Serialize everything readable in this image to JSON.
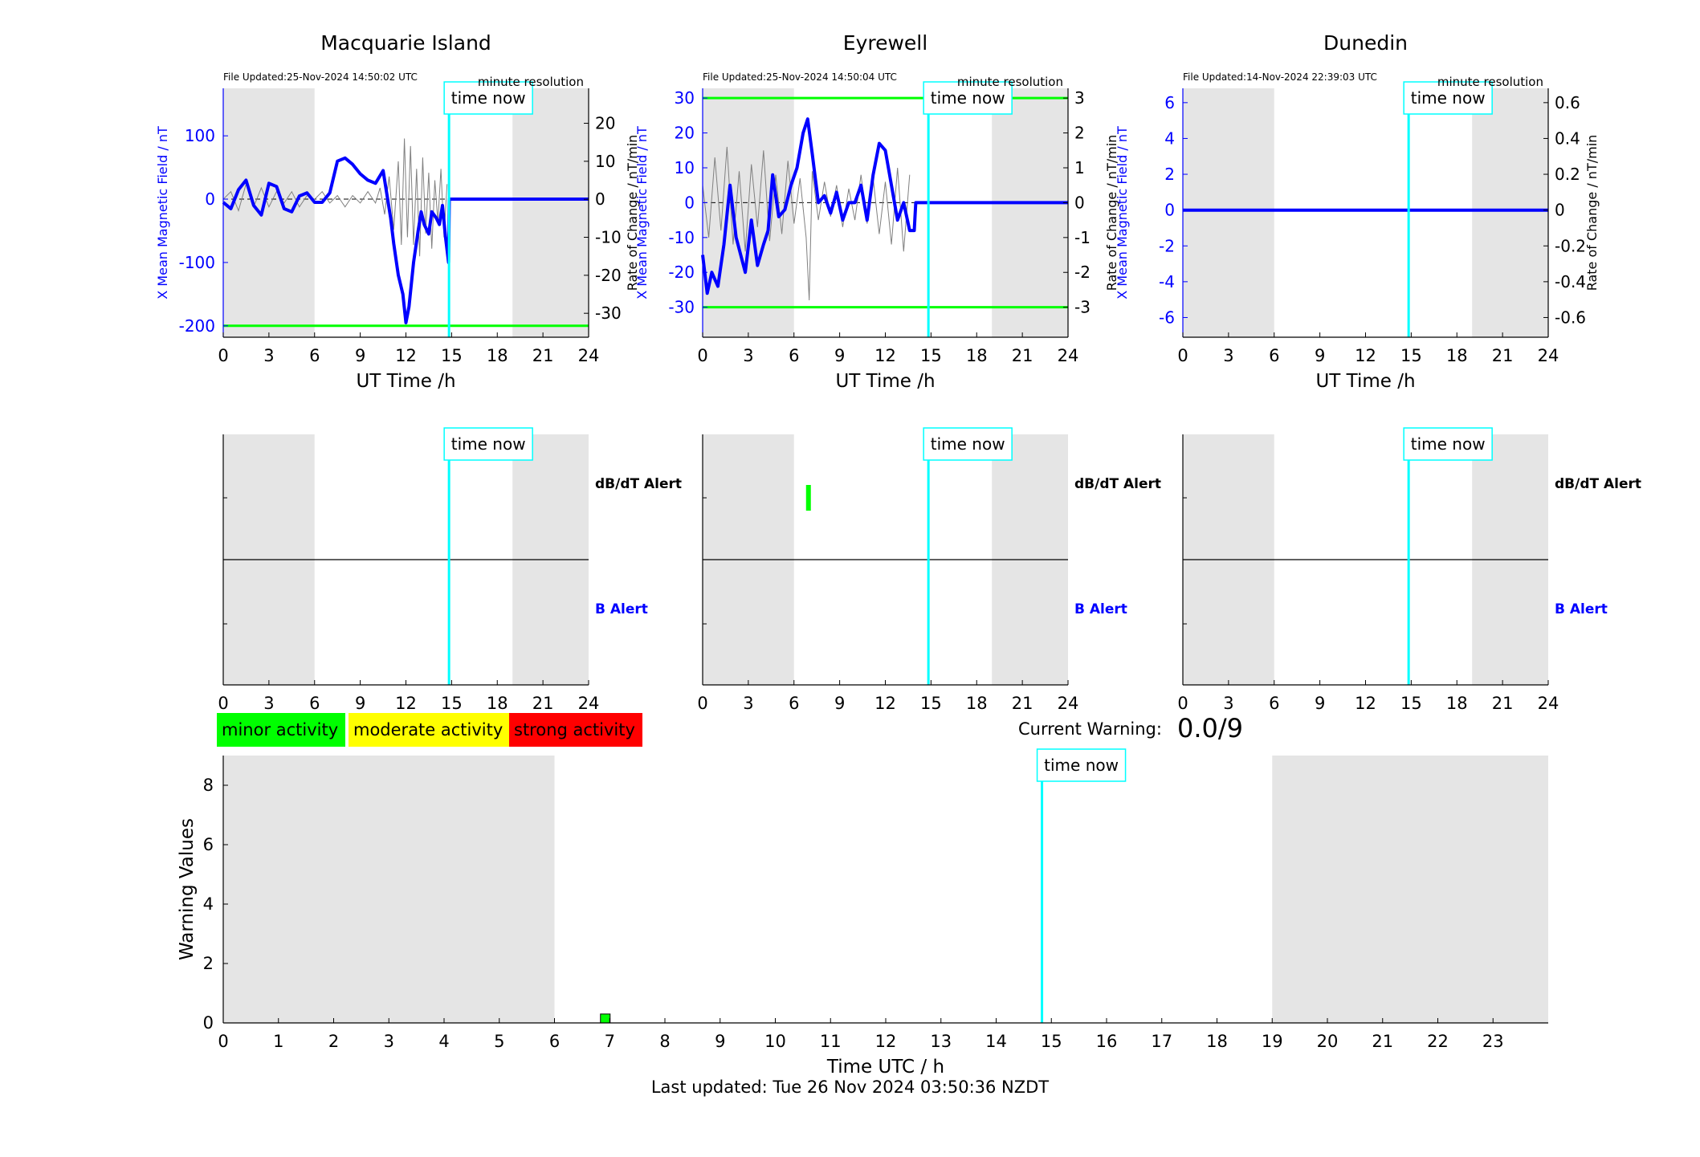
{
  "chart_data": [
    {
      "type": "line",
      "title": "Macquarie Island",
      "file_updated": "File Updated:25-Nov-2024 14:50:02 UTC",
      "resolution_note": "minute resolution",
      "xlabel": "UT Time /h",
      "ylabel_left": "X Mean Magnetic Field / nT",
      "ylabel_right": "Rate of Change / nT/min",
      "xlim": [
        0,
        24
      ],
      "xticks": [
        "0",
        "3",
        "6",
        "9",
        "12",
        "15",
        "18",
        "21",
        "24"
      ],
      "ylim_left": [
        -218,
        175
      ],
      "yticks_left": [
        "100",
        "0",
        "-100",
        "-200"
      ],
      "yticks_left_values": [
        100,
        0,
        -100,
        -200
      ],
      "ylim_right": [
        -36.3,
        29.2
      ],
      "yticks_right": [
        "20",
        "10",
        "0",
        "-10",
        "-20",
        "-30"
      ],
      "yticks_right_values": [
        20,
        10,
        0,
        -10,
        -20,
        -30
      ],
      "threshold_lines_left": [
        -200
      ],
      "shaded_hours": [
        [
          0,
          6
        ],
        [
          19,
          24
        ]
      ],
      "time_now_hour": 14.83,
      "time_now_label": "time now",
      "series": [
        {
          "role": "field",
          "x": [
            0,
            0.5,
            1,
            1.5,
            2,
            2.5,
            3,
            3.5,
            4,
            4.5,
            5,
            5.5,
            6,
            6.5,
            7,
            7.5,
            8,
            8.5,
            9,
            9.5,
            10,
            10.5,
            11,
            11.2,
            11.5,
            11.8,
            12,
            12.2,
            12.5,
            12.8,
            13,
            13.2,
            13.5,
            13.7,
            14,
            14.2,
            14.4,
            14.6,
            14.8,
            14.85,
            15,
            24
          ],
          "y": [
            -5,
            -15,
            15,
            30,
            -10,
            -25,
            25,
            20,
            -15,
            -20,
            5,
            10,
            -5,
            -5,
            10,
            60,
            65,
            55,
            40,
            30,
            25,
            45,
            -30,
            -70,
            -120,
            -150,
            -195,
            -170,
            -100,
            -50,
            -20,
            -40,
            -55,
            -20,
            -30,
            -40,
            -10,
            -60,
            -100,
            0,
            0,
            0
          ]
        },
        {
          "role": "rate_of_change",
          "x": [
            0,
            0.5,
            1,
            1.5,
            2,
            2.5,
            3,
            3.5,
            4,
            4.5,
            5,
            5.5,
            6,
            6.5,
            7,
            7.5,
            8,
            8.5,
            9,
            9.5,
            10,
            10.3,
            10.6,
            10.9,
            11.2,
            11.5,
            11.7,
            11.9,
            12.1,
            12.3,
            12.5,
            12.7,
            12.9,
            13.1,
            13.3,
            13.5,
            13.7,
            13.9,
            14.1,
            14.3,
            14.5,
            14.7
          ],
          "y": [
            0,
            2,
            -3,
            4,
            -2,
            3,
            -2,
            2,
            -1,
            2,
            -2,
            1,
            0,
            2,
            -1,
            1,
            -2,
            1,
            -1,
            2,
            -1,
            3,
            -4,
            6,
            -8,
            10,
            -12,
            16,
            -10,
            14,
            -12,
            8,
            -15,
            11,
            -9,
            7,
            -13,
            5,
            -6,
            8,
            -10,
            4
          ]
        }
      ]
    },
    {
      "type": "line",
      "title": "Eyrewell",
      "file_updated": "File Updated:25-Nov-2024 14:50:04 UTC",
      "resolution_note": "minute resolution",
      "xlabel": "UT Time /h",
      "ylabel_left": "X Mean Magnetic Field / nT",
      "ylabel_right": "Rate of Change / nT/min",
      "xlim": [
        0,
        24
      ],
      "xticks": [
        "0",
        "3",
        "6",
        "9",
        "12",
        "15",
        "18",
        "21",
        "24"
      ],
      "ylim_left": [
        -38.6,
        32.8
      ],
      "yticks_left": [
        "30",
        "20",
        "10",
        "0",
        "-10",
        "-20",
        "-30"
      ],
      "yticks_left_values": [
        30,
        20,
        10,
        0,
        -10,
        -20,
        -30
      ],
      "ylim_right": [
        -3.86,
        3.28
      ],
      "yticks_right": [
        "3",
        "2",
        "1",
        "0",
        "-1",
        "-2",
        "-3"
      ],
      "yticks_right_values": [
        3,
        2,
        1,
        0,
        -1,
        -2,
        -3
      ],
      "threshold_lines_left": [
        30,
        -30
      ],
      "shaded_hours": [
        [
          0,
          6
        ],
        [
          19,
          24
        ]
      ],
      "time_now_hour": 14.83,
      "time_now_label": "time now",
      "series": [
        {
          "role": "field",
          "x": [
            0,
            0.3,
            0.6,
            1,
            1.4,
            1.8,
            2.2,
            2.5,
            2.8,
            3.2,
            3.6,
            4,
            4.3,
            4.6,
            5,
            5.4,
            5.8,
            6.2,
            6.6,
            6.9,
            7.2,
            7.6,
            8,
            8.4,
            8.8,
            9.2,
            9.6,
            10,
            10.4,
            10.8,
            11.2,
            11.6,
            12,
            12.4,
            12.8,
            13.2,
            13.6,
            13.9,
            14,
            14.83,
            24
          ],
          "y": [
            -15,
            -26,
            -20,
            -24,
            -12,
            5,
            -10,
            -15,
            -20,
            -5,
            -18,
            -12,
            -8,
            8,
            -4,
            -2,
            5,
            10,
            20,
            24,
            14,
            0,
            2,
            -3,
            3,
            -5,
            0,
            0,
            5,
            -5,
            8,
            17,
            15,
            5,
            -5,
            0,
            -8,
            -8,
            0,
            0,
            0
          ]
        },
        {
          "role": "rate_of_change",
          "x": [
            0,
            0.4,
            0.8,
            1.2,
            1.6,
            2,
            2.4,
            2.8,
            3.2,
            3.6,
            4,
            4.4,
            4.8,
            5.2,
            5.6,
            6,
            6.4,
            6.8,
            7,
            7.2,
            7.6,
            8,
            8.4,
            8.8,
            9.2,
            9.6,
            10,
            10.4,
            10.8,
            11.2,
            11.6,
            12,
            12.4,
            12.8,
            13.2,
            13.6
          ],
          "y": [
            0.5,
            -1.0,
            1.3,
            -0.8,
            1.6,
            -1.2,
            0.9,
            -1.4,
            1.1,
            -0.7,
            1.5,
            -1.1,
            0.8,
            -0.9,
            1.2,
            -0.6,
            0.7,
            -1.0,
            -2.8,
            0.9,
            -0.5,
            0.6,
            -0.4,
            0.5,
            -0.7,
            0.4,
            -0.5,
            0.8,
            -0.6,
            0.7,
            -0.9,
            0.6,
            -1.2,
            1.0,
            -1.4,
            0.8
          ]
        }
      ]
    },
    {
      "type": "line",
      "title": "Dunedin",
      "file_updated": "File Updated:14-Nov-2024 22:39:03 UTC",
      "resolution_note": "minute resolution",
      "xlabel": "UT Time /h",
      "ylabel_left": "X Mean Magnetic Field / nT",
      "ylabel_right": "Rate of Change / nT/min",
      "xlim": [
        0,
        24
      ],
      "xticks": [
        "0",
        "3",
        "6",
        "9",
        "12",
        "15",
        "18",
        "21",
        "24"
      ],
      "ylim_left": [
        -7.1,
        6.8
      ],
      "yticks_left": [
        "6",
        "4",
        "2",
        "0",
        "-2",
        "-4",
        "-6"
      ],
      "yticks_left_values": [
        6,
        4,
        2,
        0,
        -2,
        -4,
        -6
      ],
      "ylim_right": [
        -0.71,
        0.68
      ],
      "yticks_right": [
        "0.6",
        "0.4",
        "0.2",
        "0",
        "-0.2",
        "-0.4",
        "-0.6"
      ],
      "yticks_right_values": [
        0.6,
        0.4,
        0.2,
        0,
        -0.2,
        -0.4,
        -0.6
      ],
      "threshold_lines_left": [],
      "shaded_hours": [
        [
          0,
          6
        ],
        [
          19,
          24
        ]
      ],
      "time_now_hour": 14.83,
      "time_now_label": "time now",
      "series": [
        {
          "role": "field",
          "x": [
            0,
            24
          ],
          "y": [
            0,
            0
          ]
        }
      ]
    },
    {
      "type": "alert_timeline",
      "station": "Macquarie Island",
      "xlim": [
        0,
        24
      ],
      "xticks": [
        "0",
        "3",
        "6",
        "9",
        "12",
        "15",
        "18",
        "21",
        "24"
      ],
      "dbdt_label": "dB/dT Alert",
      "b_label": "B Alert",
      "shaded_hours": [
        [
          0,
          6
        ],
        [
          19,
          24
        ]
      ],
      "time_now_hour": 14.83,
      "time_now_label": "time now",
      "dbdt_alerts": [],
      "b_alerts": []
    },
    {
      "type": "alert_timeline",
      "station": "Eyrewell",
      "xlim": [
        0,
        24
      ],
      "xticks": [
        "0",
        "3",
        "6",
        "9",
        "12",
        "15",
        "18",
        "21",
        "24"
      ],
      "dbdt_label": "dB/dT Alert",
      "b_label": "B Alert",
      "shaded_hours": [
        [
          0,
          6
        ],
        [
          19,
          24
        ]
      ],
      "time_now_hour": 14.83,
      "time_now_label": "time now",
      "dbdt_alerts": [
        {
          "hour": 6.95,
          "level": "minor"
        }
      ],
      "b_alerts": []
    },
    {
      "type": "alert_timeline",
      "station": "Dunedin",
      "xlim": [
        0,
        24
      ],
      "xticks": [
        "0",
        "3",
        "6",
        "9",
        "12",
        "15",
        "18",
        "21",
        "24"
      ],
      "dbdt_label": "dB/dT Alert",
      "b_label": "B Alert",
      "shaded_hours": [
        [
          0,
          6
        ],
        [
          19,
          24
        ]
      ],
      "time_now_hour": 14.83,
      "time_now_label": "time now",
      "dbdt_alerts": [],
      "b_alerts": []
    },
    {
      "type": "bar",
      "xlabel": "Time UTC / h",
      "ylabel": "Warning Values",
      "xlim": [
        0,
        24
      ],
      "xticks": [
        "0",
        "1",
        "2",
        "3",
        "4",
        "5",
        "6",
        "7",
        "8",
        "9",
        "10",
        "11",
        "12",
        "13",
        "14",
        "15",
        "16",
        "17",
        "18",
        "19",
        "20",
        "21",
        "22",
        "23"
      ],
      "ylim": [
        0,
        9
      ],
      "yticks": [
        "0",
        "2",
        "4",
        "6",
        "8"
      ],
      "yticks_values": [
        0,
        2,
        4,
        6,
        8
      ],
      "shaded_hours": [
        [
          0,
          6
        ],
        [
          19,
          24
        ]
      ],
      "time_now_hour": 14.83,
      "time_now_label": "time now",
      "bars": [
        {
          "hour": 6.92,
          "value": 0.3,
          "level": "minor"
        }
      ]
    }
  ],
  "legend": {
    "minor": "minor activity",
    "moderate": "moderate activity",
    "strong": "strong activity"
  },
  "current_warning": {
    "label": "Current Warning:",
    "value": "0.0/9"
  },
  "footer": "Last updated: Tue 26 Nov 2024 03:50:36 NZDT",
  "colors": {
    "field": "#0000ff",
    "rate": "#808080",
    "threshold": "#00ff00",
    "time_now": "#00ffff",
    "shade": "#e5e5e5",
    "minor": "#00ff00",
    "moderate": "#ffff00",
    "strong": "#ff0000",
    "b_alert_label": "#0000ff"
  }
}
